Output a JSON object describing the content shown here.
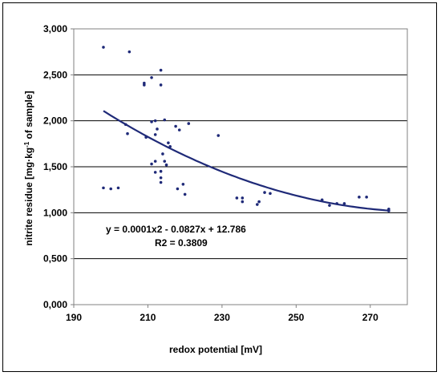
{
  "chart_data": {
    "type": "scatter",
    "xlabel": "redox potential [mV]",
    "ylabel": {
      "pre": "nitrite residue [mg·kg",
      "sup": "-1",
      "post": " of sample]"
    },
    "xlim": [
      190,
      280
    ],
    "ylim": [
      0,
      3000
    ],
    "x_ticks": [
      "190",
      "210",
      "230",
      "250",
      "270"
    ],
    "x_tick_values": [
      190,
      210,
      230,
      250,
      270
    ],
    "y_ticks": [
      "0,000",
      "0,500",
      "1,000",
      "1,500",
      "2,000",
      "2,500",
      "3,000"
    ],
    "y_tick_values": [
      0,
      500,
      1000,
      1500,
      2000,
      2500,
      3000
    ],
    "grid": "horizontal",
    "marker_color": "#1f2a78",
    "trend_color": "#1f2a78",
    "points": [
      {
        "x": 198,
        "y": 2800
      },
      {
        "x": 205,
        "y": 2750
      },
      {
        "x": 213.5,
        "y": 2550
      },
      {
        "x": 211,
        "y": 2470
      },
      {
        "x": 209,
        "y": 2410
      },
      {
        "x": 209,
        "y": 2390
      },
      {
        "x": 213.5,
        "y": 2390
      },
      {
        "x": 214.5,
        "y": 2010
      },
      {
        "x": 212,
        "y": 2000
      },
      {
        "x": 211,
        "y": 1990
      },
      {
        "x": 204,
        "y": 1960
      },
      {
        "x": 221,
        "y": 1970
      },
      {
        "x": 217.5,
        "y": 1940
      },
      {
        "x": 218.5,
        "y": 1900
      },
      {
        "x": 212.5,
        "y": 1910
      },
      {
        "x": 204.5,
        "y": 1860
      },
      {
        "x": 212,
        "y": 1850
      },
      {
        "x": 209.5,
        "y": 1820
      },
      {
        "x": 229,
        "y": 1840
      },
      {
        "x": 215.5,
        "y": 1760
      },
      {
        "x": 216,
        "y": 1720
      },
      {
        "x": 214,
        "y": 1640
      },
      {
        "x": 214.5,
        "y": 1560
      },
      {
        "x": 212,
        "y": 1560
      },
      {
        "x": 215,
        "y": 1520
      },
      {
        "x": 211,
        "y": 1530
      },
      {
        "x": 213.5,
        "y": 1450
      },
      {
        "x": 212,
        "y": 1440
      },
      {
        "x": 213.5,
        "y": 1380
      },
      {
        "x": 213.5,
        "y": 1330
      },
      {
        "x": 219.5,
        "y": 1310
      },
      {
        "x": 198,
        "y": 1270
      },
      {
        "x": 200,
        "y": 1260
      },
      {
        "x": 202,
        "y": 1270
      },
      {
        "x": 218,
        "y": 1260
      },
      {
        "x": 220,
        "y": 1200
      },
      {
        "x": 234,
        "y": 1160
      },
      {
        "x": 235.5,
        "y": 1160
      },
      {
        "x": 235.5,
        "y": 1120
      },
      {
        "x": 239.5,
        "y": 1090
      },
      {
        "x": 240,
        "y": 1120
      },
      {
        "x": 241.5,
        "y": 1220
      },
      {
        "x": 243,
        "y": 1210
      },
      {
        "x": 257,
        "y": 1140
      },
      {
        "x": 259,
        "y": 1080
      },
      {
        "x": 261,
        "y": 1100
      },
      {
        "x": 263,
        "y": 1100
      },
      {
        "x": 267,
        "y": 1170
      },
      {
        "x": 269,
        "y": 1170
      },
      {
        "x": 275,
        "y": 1040
      },
      {
        "x": 275,
        "y": 1020
      }
    ],
    "trendline": {
      "type": "polynomial",
      "order": 2,
      "x_range": [
        198,
        275
      ]
    },
    "annotations": [
      "y = 0.0001x2 - 0.0827x + 12.786",
      "R2 = 0.3809"
    ]
  }
}
